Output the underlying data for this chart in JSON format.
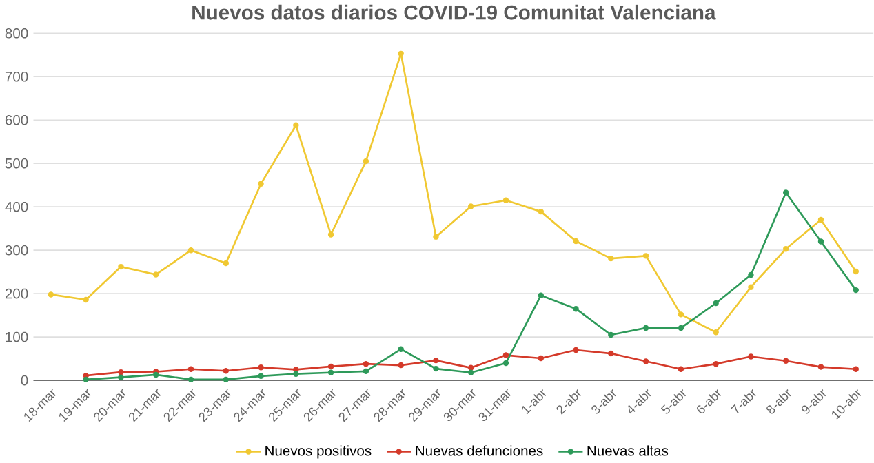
{
  "chart_data": {
    "type": "line",
    "title": "Nuevos datos diarios COVID-19 Comunitat Valenciana",
    "categories": [
      "18-mar",
      "19-mar",
      "20-mar",
      "21-mar",
      "22-mar",
      "23-mar",
      "24-mar",
      "25-mar",
      "26-mar",
      "27-mar",
      "28-mar",
      "29-mar",
      "30-mar",
      "31-mar",
      "1-abr",
      "2-abr",
      "3-abr",
      "4-abr",
      "5-abr",
      "6-abr",
      "7-abr",
      "8-abr",
      "9-abr",
      "10-abr"
    ],
    "series": [
      {
        "name": "Nuevos positivos",
        "color": "#f0c832",
        "values": [
          198,
          186,
          262,
          244,
          300,
          270,
          453,
          588,
          336,
          505,
          753,
          331,
          401,
          415,
          389,
          321,
          281,
          287,
          152,
          111,
          215,
          303,
          370,
          251
        ]
      },
      {
        "name": "Nuevas defunciones",
        "color": "#d43a2a",
        "values": [
          null,
          11,
          19,
          20,
          26,
          22,
          30,
          25,
          32,
          38,
          35,
          46,
          29,
          58,
          51,
          70,
          62,
          44,
          26,
          38,
          55,
          45,
          31,
          26
        ]
      },
      {
        "name": "Nuevas altas",
        "color": "#2e9a5a",
        "values": [
          null,
          2,
          7,
          13,
          2,
          2,
          10,
          15,
          18,
          21,
          72,
          27,
          18,
          40,
          196,
          165,
          105,
          121,
          121,
          178,
          243,
          433,
          320,
          208
        ]
      }
    ],
    "ylim": [
      0,
      800
    ],
    "yticks": [
      0,
      100,
      200,
      300,
      400,
      500,
      600,
      700,
      800
    ],
    "grid": "y",
    "legend": "bottom",
    "marker": "circle",
    "line_style": "solid"
  }
}
